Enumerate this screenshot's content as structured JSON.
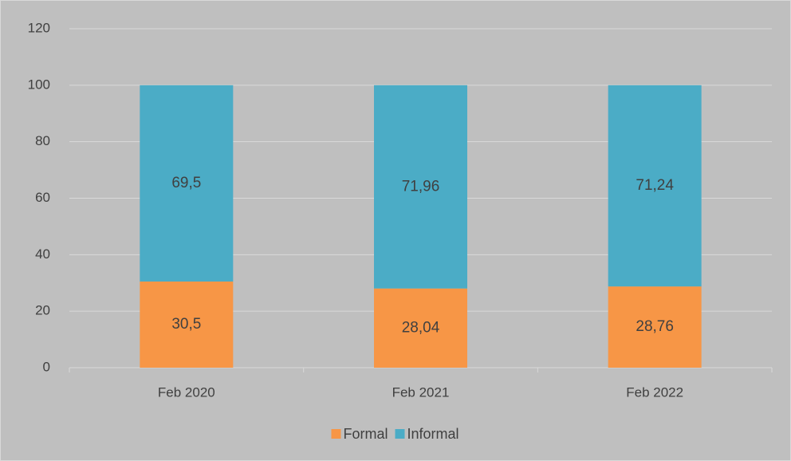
{
  "chart_data": {
    "type": "stacked_bar",
    "categories": [
      "Feb 2020",
      "Feb 2021",
      "Feb 2022"
    ],
    "series": [
      {
        "name": "Formal",
        "color": "#f79646",
        "values": [
          30.5,
          28.04,
          28.76
        ],
        "value_labels": [
          "30,5",
          "28,04",
          "28,76"
        ]
      },
      {
        "name": "Informal",
        "color": "#4bacc6",
        "values": [
          69.5,
          71.96,
          71.24
        ],
        "value_labels": [
          "69,5",
          "71,96",
          "71,24"
        ]
      }
    ],
    "ylim": [
      0,
      120
    ],
    "yticks": [
      0,
      20,
      40,
      60,
      80,
      100,
      120
    ],
    "grid": true,
    "legend": "bottom"
  }
}
